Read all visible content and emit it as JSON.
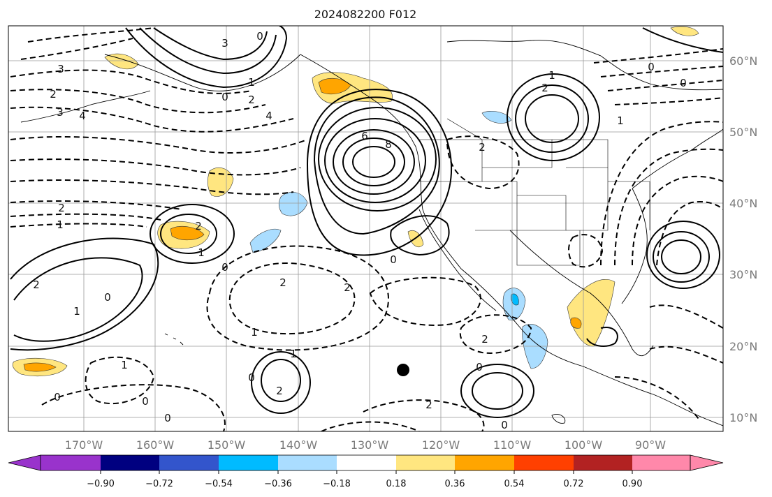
{
  "title": "2024082200 F012",
  "map": {
    "lon_labels": [
      "170°W",
      "160°W",
      "150°W",
      "140°W",
      "130°W",
      "120°W",
      "110°W",
      "100°W",
      "90°W"
    ],
    "lat_labels": [
      "60°N",
      "50°N",
      "40°N",
      "30°N",
      "20°N",
      "10°N"
    ],
    "grid": true,
    "contour_labels": [
      "3",
      "3",
      "2",
      "3",
      "4",
      "0",
      "2",
      "1",
      "0",
      "4",
      "6",
      "8",
      "1",
      "2",
      "0",
      "2",
      "1",
      "0",
      "2",
      "2",
      "1",
      "1",
      "2",
      "0",
      "1",
      "0",
      "2",
      "1",
      "0",
      "2",
      "0",
      "2",
      "2",
      "0",
      "2",
      "0",
      "1",
      "0",
      "0",
      "0",
      "1"
    ],
    "point_marker": "black-dot"
  },
  "colorbar": {
    "tick_labels": [
      "−0.90",
      "−0.72",
      "−0.54",
      "−0.36",
      "−0.18",
      "0.18",
      "0.36",
      "0.54",
      "0.72",
      "0.90"
    ],
    "colors": [
      "#9933cc",
      "#000080",
      "#3355cc",
      "#00bbff",
      "#aaddff",
      "#ffffff",
      "#ffe680",
      "#ffa500",
      "#ff4000",
      "#b22222",
      "#ff88aa"
    ]
  }
}
